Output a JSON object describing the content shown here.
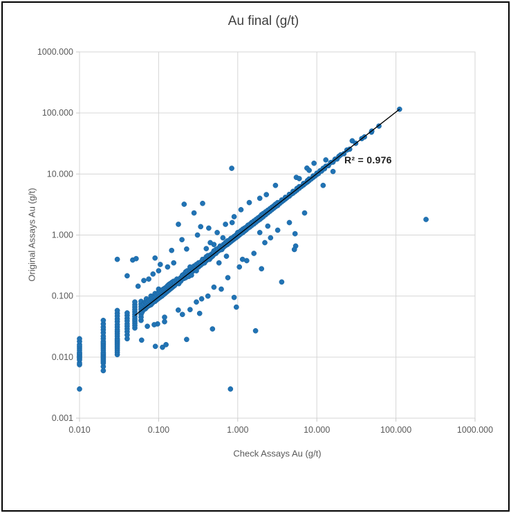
{
  "window": {
    "background": "#ffffff",
    "frame_color": "#000000"
  },
  "chart_data": {
    "type": "scatter",
    "title": "Au final (g/t)",
    "xlabel": "Check Assays Au (g/t)",
    "ylabel": "Original Assays Au (g/t)",
    "x_scale": "log",
    "y_scale": "log",
    "xlim": [
      0.01,
      1000
    ],
    "ylim": [
      0.001,
      1000
    ],
    "grid": true,
    "x_ticks": {
      "values": [
        0.01,
        0.1,
        1,
        10,
        100,
        1000
      ],
      "labels": [
        "0.010",
        "0.100",
        "1.000",
        "10.000",
        "100.000",
        "1000.000"
      ]
    },
    "y_ticks": {
      "values": [
        0.001,
        0.01,
        0.1,
        1,
        10,
        100,
        1000
      ],
      "labels": [
        "0.001",
        "0.010",
        "0.100",
        "1.000",
        "10.000",
        "100.000",
        "1000.000"
      ]
    },
    "r_squared_label": "R² = 0.976",
    "trendline": {
      "x1": 0.05,
      "y1": 0.048,
      "x2": 111,
      "y2": 115,
      "color": "#000000"
    },
    "marker_color": "#2173b4",
    "marker_edge_color": "#17629e",
    "gridline_color": "#d6d6d6",
    "axis_color": "#c9c9c9",
    "label_color": "#595959",
    "title_color": "#3f3f3f",
    "points": [
      [
        0.01,
        0.003
      ],
      [
        0.01,
        0.0075
      ],
      [
        0.01,
        0.008
      ],
      [
        0.01,
        0.009
      ],
      [
        0.01,
        0.0095
      ],
      [
        0.01,
        0.01
      ],
      [
        0.01,
        0.0105
      ],
      [
        0.01,
        0.011
      ],
      [
        0.01,
        0.0115
      ],
      [
        0.01,
        0.012
      ],
      [
        0.01,
        0.013
      ],
      [
        0.01,
        0.014
      ],
      [
        0.01,
        0.015
      ],
      [
        0.01,
        0.016
      ],
      [
        0.01,
        0.018
      ],
      [
        0.01,
        0.02
      ],
      [
        0.02,
        0.006
      ],
      [
        0.02,
        0.007
      ],
      [
        0.02,
        0.008
      ],
      [
        0.02,
        0.0085
      ],
      [
        0.02,
        0.009
      ],
      [
        0.02,
        0.0095
      ],
      [
        0.02,
        0.01
      ],
      [
        0.02,
        0.0105
      ],
      [
        0.02,
        0.011
      ],
      [
        0.02,
        0.0115
      ],
      [
        0.02,
        0.012
      ],
      [
        0.02,
        0.013
      ],
      [
        0.02,
        0.014
      ],
      [
        0.02,
        0.015
      ],
      [
        0.02,
        0.016
      ],
      [
        0.02,
        0.017
      ],
      [
        0.02,
        0.018
      ],
      [
        0.02,
        0.02
      ],
      [
        0.02,
        0.022
      ],
      [
        0.02,
        0.025
      ],
      [
        0.02,
        0.028
      ],
      [
        0.02,
        0.031
      ],
      [
        0.02,
        0.035
      ],
      [
        0.02,
        0.04
      ],
      [
        0.03,
        0.011
      ],
      [
        0.03,
        0.012
      ],
      [
        0.03,
        0.013
      ],
      [
        0.03,
        0.014
      ],
      [
        0.03,
        0.015
      ],
      [
        0.03,
        0.016
      ],
      [
        0.03,
        0.017
      ],
      [
        0.03,
        0.018
      ],
      [
        0.03,
        0.019
      ],
      [
        0.03,
        0.02
      ],
      [
        0.03,
        0.022
      ],
      [
        0.03,
        0.024
      ],
      [
        0.03,
        0.026
      ],
      [
        0.03,
        0.028
      ],
      [
        0.03,
        0.031
      ],
      [
        0.03,
        0.034
      ],
      [
        0.03,
        0.038
      ],
      [
        0.03,
        0.042
      ],
      [
        0.03,
        0.047
      ],
      [
        0.03,
        0.052
      ],
      [
        0.03,
        0.058
      ],
      [
        0.03,
        0.4
      ],
      [
        0.04,
        0.02
      ],
      [
        0.04,
        0.023
      ],
      [
        0.04,
        0.026
      ],
      [
        0.04,
        0.029
      ],
      [
        0.04,
        0.032
      ],
      [
        0.04,
        0.035
      ],
      [
        0.04,
        0.039
      ],
      [
        0.04,
        0.043
      ],
      [
        0.04,
        0.048
      ],
      [
        0.04,
        0.053
      ],
      [
        0.04,
        0.215
      ],
      [
        0.047,
        0.39
      ],
      [
        0.05,
        0.03
      ],
      [
        0.05,
        0.033
      ],
      [
        0.05,
        0.036
      ],
      [
        0.05,
        0.039
      ],
      [
        0.05,
        0.042
      ],
      [
        0.05,
        0.046
      ],
      [
        0.05,
        0.05
      ],
      [
        0.05,
        0.055
      ],
      [
        0.05,
        0.06
      ],
      [
        0.05,
        0.066
      ],
      [
        0.05,
        0.072
      ],
      [
        0.05,
        0.08
      ],
      [
        0.052,
        0.41
      ],
      [
        0.06,
        0.04
      ],
      [
        0.06,
        0.045
      ],
      [
        0.06,
        0.05
      ],
      [
        0.06,
        0.055
      ],
      [
        0.06,
        0.061
      ],
      [
        0.06,
        0.067
      ],
      [
        0.06,
        0.074
      ],
      [
        0.06,
        0.082
      ],
      [
        0.062,
        0.055
      ],
      [
        0.062,
        0.07
      ],
      [
        0.065,
        0.06
      ],
      [
        0.065,
        0.075
      ],
      [
        0.068,
        0.062
      ],
      [
        0.068,
        0.08
      ],
      [
        0.07,
        0.065
      ],
      [
        0.07,
        0.078
      ],
      [
        0.07,
        0.09
      ],
      [
        0.073,
        0.068
      ],
      [
        0.073,
        0.082
      ],
      [
        0.076,
        0.07
      ],
      [
        0.076,
        0.086
      ],
      [
        0.08,
        0.072
      ],
      [
        0.08,
        0.09
      ],
      [
        0.08,
        0.1
      ],
      [
        0.083,
        0.076
      ],
      [
        0.083,
        0.094
      ],
      [
        0.086,
        0.08
      ],
      [
        0.086,
        0.098
      ],
      [
        0.09,
        0.082
      ],
      [
        0.09,
        0.1
      ],
      [
        0.09,
        0.11
      ],
      [
        0.094,
        0.086
      ],
      [
        0.094,
        0.105
      ],
      [
        0.098,
        0.09
      ],
      [
        0.098,
        0.11
      ],
      [
        0.1,
        0.092
      ],
      [
        0.1,
        0.115
      ],
      [
        0.1,
        0.13
      ],
      [
        0.105,
        0.096
      ],
      [
        0.105,
        0.12
      ],
      [
        0.11,
        0.1
      ],
      [
        0.11,
        0.125
      ],
      [
        0.115,
        0.105
      ],
      [
        0.115,
        0.13
      ],
      [
        0.12,
        0.11
      ],
      [
        0.12,
        0.135
      ],
      [
        0.125,
        0.115
      ],
      [
        0.125,
        0.14
      ],
      [
        0.13,
        0.12
      ],
      [
        0.13,
        0.148
      ],
      [
        0.135,
        0.125
      ],
      [
        0.135,
        0.155
      ],
      [
        0.14,
        0.13
      ],
      [
        0.14,
        0.16
      ],
      [
        0.145,
        0.135
      ],
      [
        0.145,
        0.165
      ],
      [
        0.15,
        0.14
      ],
      [
        0.15,
        0.17
      ],
      [
        0.155,
        0.145
      ],
      [
        0.155,
        0.175
      ],
      [
        0.16,
        0.15
      ],
      [
        0.16,
        0.17
      ],
      [
        0.17,
        0.165
      ],
      [
        0.17,
        0.19
      ],
      [
        0.18,
        0.16
      ],
      [
        0.18,
        0.185
      ],
      [
        0.19,
        0.2
      ],
      [
        0.19,
        0.175
      ],
      [
        0.2,
        0.19
      ],
      [
        0.2,
        0.21
      ],
      [
        0.2,
        0.22
      ],
      [
        0.21,
        0.195
      ],
      [
        0.21,
        0.23
      ],
      [
        0.22,
        0.215
      ],
      [
        0.22,
        0.2
      ],
      [
        0.22,
        0.25
      ],
      [
        0.23,
        0.22
      ],
      [
        0.23,
        0.26
      ],
      [
        0.24,
        0.225
      ],
      [
        0.24,
        0.21
      ],
      [
        0.25,
        0.24
      ],
      [
        0.25,
        0.27
      ],
      [
        0.25,
        0.3
      ],
      [
        0.26,
        0.25
      ],
      [
        0.26,
        0.22
      ],
      [
        0.27,
        0.28
      ],
      [
        0.27,
        0.255
      ],
      [
        0.28,
        0.27
      ],
      [
        0.28,
        0.31
      ],
      [
        0.29,
        0.265
      ],
      [
        0.29,
        0.3
      ],
      [
        0.3,
        0.29
      ],
      [
        0.3,
        0.33
      ],
      [
        0.3,
        0.26
      ],
      [
        0.32,
        0.3
      ],
      [
        0.32,
        0.35
      ],
      [
        0.34,
        0.32
      ],
      [
        0.34,
        0.36
      ],
      [
        0.36,
        0.34
      ],
      [
        0.36,
        0.4
      ],
      [
        0.38,
        0.36
      ],
      [
        0.38,
        0.35
      ],
      [
        0.4,
        0.38
      ],
      [
        0.4,
        0.44
      ],
      [
        0.4,
        0.41
      ],
      [
        0.42,
        0.4
      ],
      [
        0.42,
        0.46
      ],
      [
        0.44,
        0.42
      ],
      [
        0.44,
        0.4
      ],
      [
        0.46,
        0.48
      ],
      [
        0.46,
        0.43
      ],
      [
        0.48,
        0.5
      ],
      [
        0.48,
        0.45
      ],
      [
        0.5,
        0.48
      ],
      [
        0.5,
        0.55
      ],
      [
        0.5,
        0.52
      ],
      [
        0.53,
        0.5
      ],
      [
        0.53,
        0.58
      ],
      [
        0.56,
        0.54
      ],
      [
        0.56,
        0.6
      ],
      [
        0.6,
        0.57
      ],
      [
        0.6,
        0.66
      ],
      [
        0.6,
        0.62
      ],
      [
        0.63,
        0.6
      ],
      [
        0.63,
        0.58
      ],
      [
        0.66,
        0.7
      ],
      [
        0.66,
        0.63
      ],
      [
        0.7,
        0.67
      ],
      [
        0.7,
        0.75
      ],
      [
        0.7,
        0.72
      ],
      [
        0.74,
        0.7
      ],
      [
        0.74,
        0.8
      ],
      [
        0.78,
        0.74
      ],
      [
        0.78,
        0.82
      ],
      [
        0.82,
        0.78
      ],
      [
        0.82,
        0.88
      ],
      [
        0.86,
        0.82
      ],
      [
        0.86,
        0.9
      ],
      [
        0.9,
        0.86
      ],
      [
        0.9,
        0.95
      ],
      [
        0.9,
        0.88
      ],
      [
        0.95,
        0.9
      ],
      [
        0.95,
        1.0
      ],
      [
        1.0,
        0.95
      ],
      [
        1.0,
        1.05
      ],
      [
        1.0,
        1.1
      ],
      [
        1.05,
        1.0
      ],
      [
        1.05,
        1.12
      ],
      [
        1.1,
        1.05
      ],
      [
        1.1,
        1.18
      ],
      [
        1.16,
        1.1
      ],
      [
        1.16,
        1.25
      ],
      [
        1.22,
        1.16
      ],
      [
        1.22,
        1.3
      ],
      [
        1.28,
        1.22
      ],
      [
        1.28,
        1.35
      ],
      [
        1.35,
        1.3
      ],
      [
        1.35,
        1.45
      ],
      [
        1.42,
        1.35
      ],
      [
        1.42,
        1.5
      ],
      [
        1.5,
        1.43
      ],
      [
        1.5,
        1.6
      ],
      [
        1.5,
        1.55
      ],
      [
        1.6,
        1.52
      ],
      [
        1.6,
        1.7
      ],
      [
        1.7,
        1.62
      ],
      [
        1.7,
        1.8
      ],
      [
        1.8,
        1.72
      ],
      [
        1.8,
        1.9
      ],
      [
        1.9,
        1.8
      ],
      [
        1.9,
        2.0
      ],
      [
        2.0,
        1.9
      ],
      [
        2.0,
        2.1
      ],
      [
        2.0,
        2.15
      ],
      [
        2.1,
        2.0
      ],
      [
        2.1,
        2.25
      ],
      [
        2.25,
        2.15
      ],
      [
        2.25,
        2.4
      ],
      [
        2.4,
        2.3
      ],
      [
        2.4,
        2.55
      ],
      [
        2.55,
        2.45
      ],
      [
        2.55,
        2.7
      ],
      [
        2.7,
        2.6
      ],
      [
        2.7,
        2.85
      ],
      [
        2.85,
        2.75
      ],
      [
        2.85,
        3.0
      ],
      [
        3.0,
        2.9
      ],
      [
        3.0,
        3.2
      ],
      [
        3.2,
        3.05
      ],
      [
        3.2,
        3.4
      ],
      [
        3.4,
        3.3
      ],
      [
        3.6,
        3.5
      ],
      [
        3.6,
        3.75
      ],
      [
        3.8,
        3.7
      ],
      [
        4.0,
        3.9
      ],
      [
        4.0,
        4.15
      ],
      [
        4.2,
        4.1
      ],
      [
        4.5,
        4.35
      ],
      [
        4.5,
        4.65
      ],
      [
        4.8,
        4.7
      ],
      [
        5.0,
        4.85
      ],
      [
        5.0,
        5.2
      ],
      [
        5.3,
        5.15
      ],
      [
        5.6,
        5.45
      ],
      [
        5.6,
        5.8
      ],
      [
        6.0,
        5.85
      ],
      [
        6.0,
        6.2
      ],
      [
        6.4,
        6.25
      ],
      [
        6.8,
        6.6
      ],
      [
        6.8,
        7.0
      ],
      [
        7.2,
        7.05
      ],
      [
        7.6,
        7.4
      ],
      [
        7.6,
        7.8
      ],
      [
        8.0,
        7.8
      ],
      [
        8.0,
        8.3
      ],
      [
        8.5,
        8.3
      ],
      [
        9.0,
        8.8
      ],
      [
        9.0,
        9.3
      ],
      [
        9.5,
        9.3
      ],
      [
        10,
        9.8
      ],
      [
        10,
        10.3
      ],
      [
        10.5,
        10.2
      ],
      [
        11,
        11.3
      ],
      [
        11.5,
        11.2
      ],
      [
        12,
        12.4
      ],
      [
        12.5,
        12.2
      ],
      [
        13,
        13.4
      ],
      [
        14,
        13.7
      ],
      [
        15,
        15.4
      ],
      [
        16,
        15.7
      ],
      [
        17,
        17.5
      ],
      [
        18,
        17.6
      ],
      [
        19,
        19.5
      ],
      [
        20,
        20.5
      ],
      [
        22,
        21.5
      ],
      [
        24,
        24.7
      ],
      [
        26,
        25.5
      ],
      [
        28,
        35
      ],
      [
        31,
        31.8
      ],
      [
        37,
        38
      ],
      [
        40,
        40.5
      ],
      [
        49,
        48.5
      ],
      [
        49.5,
        50.5
      ],
      [
        61,
        61
      ],
      [
        111,
        115
      ],
      [
        0.84,
        12.4
      ],
      [
        0.81,
        0.003
      ],
      [
        240,
        1.8
      ],
      [
        1.68,
        0.027
      ],
      [
        0.96,
        0.066
      ],
      [
        5.3,
        1.05
      ],
      [
        5.4,
        0.66
      ],
      [
        5.2,
        0.58
      ],
      [
        2.0,
        0.28
      ],
      [
        3.6,
        0.17
      ],
      [
        0.21,
        3.2
      ],
      [
        0.36,
        3.3
      ],
      [
        0.28,
        2.3
      ],
      [
        0.178,
        1.5
      ],
      [
        0.34,
        1.37
      ],
      [
        0.43,
        1.3
      ],
      [
        0.31,
        1.0
      ],
      [
        0.197,
        0.84
      ],
      [
        0.146,
        0.56
      ],
      [
        0.226,
        0.59
      ],
      [
        0.177,
        0.059
      ],
      [
        0.119,
        0.045
      ],
      [
        0.119,
        0.038
      ],
      [
        0.097,
        0.035
      ],
      [
        0.072,
        0.032
      ],
      [
        0.088,
        0.034
      ],
      [
        0.061,
        0.019
      ],
      [
        0.091,
        0.015
      ],
      [
        0.112,
        0.0145
      ],
      [
        0.226,
        0.0195
      ],
      [
        0.124,
        0.016
      ],
      [
        0.48,
        0.029
      ],
      [
        0.9,
        0.095
      ],
      [
        1.3,
        0.38
      ],
      [
        1.05,
        0.3
      ],
      [
        0.75,
        0.2
      ],
      [
        0.62,
        0.13
      ],
      [
        2.6,
        0.9
      ],
      [
        4.5,
        1.6
      ],
      [
        3.2,
        1.2
      ],
      [
        7.0,
        2.3
      ],
      [
        12,
        6.5
      ],
      [
        0.055,
        0.145
      ],
      [
        0.065,
        0.18
      ],
      [
        0.075,
        0.19
      ],
      [
        0.085,
        0.23
      ],
      [
        0.1,
        0.26
      ],
      [
        0.13,
        0.3
      ],
      [
        0.155,
        0.35
      ],
      [
        0.105,
        0.33
      ],
      [
        0.09,
        0.42
      ],
      [
        0.2,
        0.05
      ],
      [
        0.25,
        0.06
      ],
      [
        0.3,
        0.08
      ],
      [
        0.35,
        0.09
      ],
      [
        0.33,
        0.052
      ],
      [
        0.42,
        0.1
      ],
      [
        0.5,
        0.14
      ],
      [
        0.65,
        0.9
      ],
      [
        0.5,
        0.7
      ],
      [
        0.4,
        0.6
      ],
      [
        0.45,
        0.75
      ],
      [
        0.55,
        1.1
      ],
      [
        0.7,
        1.5
      ],
      [
        0.9,
        2.0
      ],
      [
        1.1,
        2.6
      ],
      [
        1.4,
        3.4
      ],
      [
        0.85,
        1.6
      ],
      [
        2.3,
        4.6
      ],
      [
        1.9,
        4.0
      ],
      [
        3.0,
        6.5
      ],
      [
        1.6,
        0.5
      ],
      [
        2.2,
        0.75
      ],
      [
        1.15,
        0.4
      ],
      [
        5.5,
        8.8
      ],
      [
        7.5,
        12.5
      ],
      [
        9.2,
        15
      ],
      [
        0.58,
        0.35
      ],
      [
        0.72,
        0.45
      ],
      [
        1.9,
        1.1
      ],
      [
        2.4,
        1.4
      ],
      [
        16,
        11
      ],
      [
        13,
        17
      ],
      [
        8,
        11.5
      ],
      [
        6,
        8.4
      ]
    ]
  }
}
